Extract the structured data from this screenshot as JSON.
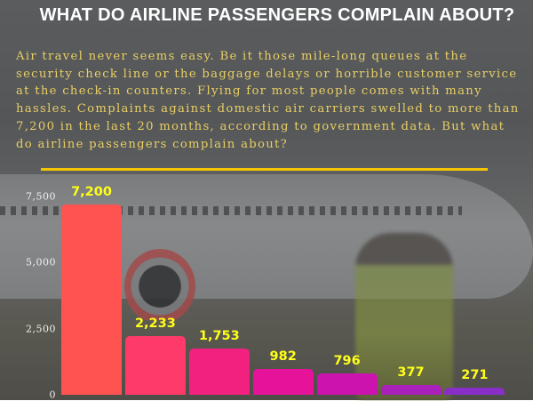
{
  "header": {
    "title": "WHAT DO AIRLINE PASSENGERS COMPLAIN ABOUT?"
  },
  "intro": {
    "text": "Air travel never seems easy. Be it those mile-long queues at the security check line or the baggage delays or horrible customer service at the check-in counters. Flying for most people comes with many hassles.  Complaints against domestic air carriers swelled to more than 7,200 in the last 20 months, according to government data. But what do airline passengers complain about?"
  },
  "colors": {
    "title": "#ffffff",
    "intro_text": "#e9cf63",
    "divider": "#f5c400",
    "value_labels": "#ffff1a"
  },
  "chart_data": {
    "type": "bar",
    "title": "WHAT DO AIRLINE PASSENGERS COMPLAIN ABOUT?",
    "xlabel": "",
    "ylabel": "",
    "categories": [
      "",
      "",
      "",
      "",
      "",
      "",
      ""
    ],
    "values": [
      7200,
      2233,
      1753,
      982,
      796,
      377,
      271
    ],
    "value_labels": [
      "7,200",
      "2,233",
      "1,753",
      "982",
      "796",
      "377",
      "271"
    ],
    "bar_colors": [
      "#fe5350",
      "#fd3a6a",
      "#f2217f",
      "#e6129a",
      "#cc13ae",
      "#aa20bb",
      "#8a2ec8"
    ],
    "yticks": [
      "0",
      "2,500",
      "5,000",
      "7,500"
    ],
    "ytick_values": [
      0,
      2500,
      5000,
      7500
    ],
    "ylim": [
      0,
      7500
    ],
    "grid": false,
    "legend": null
  }
}
